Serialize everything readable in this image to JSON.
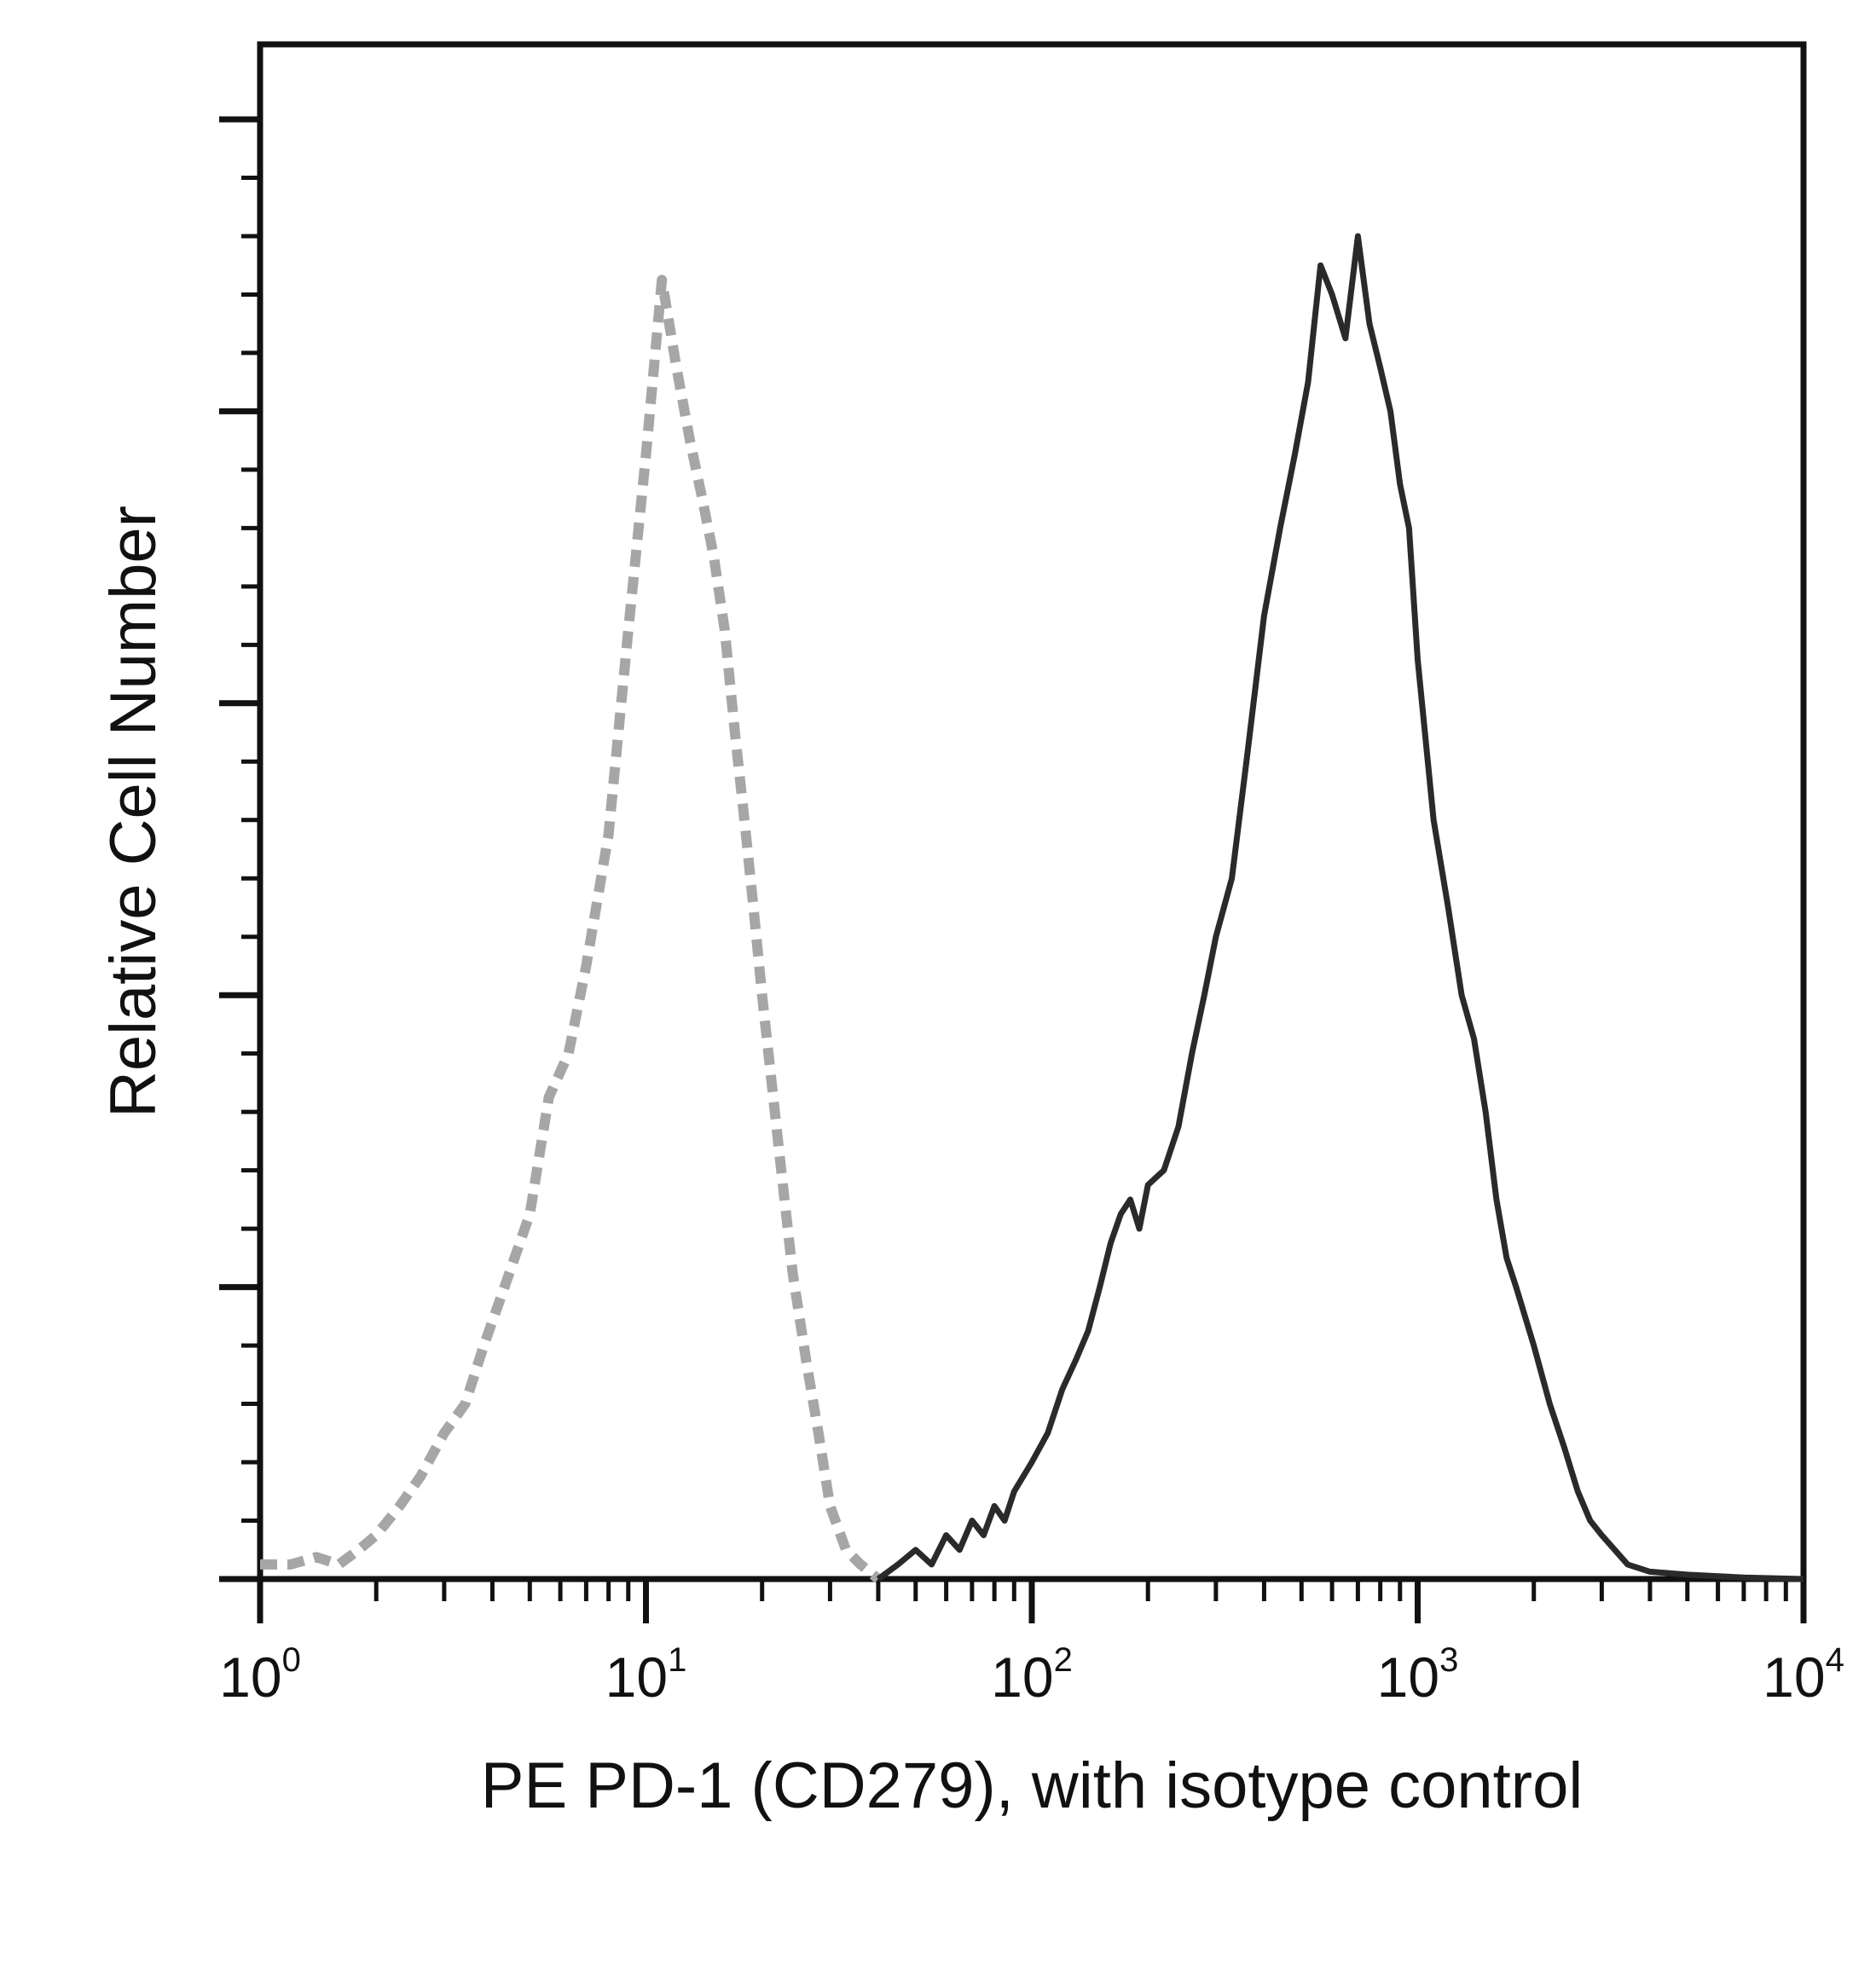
{
  "chart_data": {
    "type": "line",
    "title": "",
    "xlabel": "PE PD-1 (CD279), with isotype control",
    "ylabel": "Relative Cell Number",
    "x_scale": "log",
    "xlim": [
      1,
      10000
    ],
    "ylim": [
      0,
      100
    ],
    "x_ticks": [
      {
        "base": "10",
        "exp": "0"
      },
      {
        "base": "10",
        "exp": "1"
      },
      {
        "base": "10",
        "exp": "2"
      },
      {
        "base": "10",
        "exp": "3"
      },
      {
        "base": "10",
        "exp": "4"
      }
    ],
    "grid": false,
    "legend": "none",
    "series": [
      {
        "style": "dashed",
        "color": "#a6a6a6",
        "x": [
          1,
          1.2,
          1.4,
          1.6,
          1.8,
          2,
          2.3,
          2.6,
          3,
          3.4,
          3.8,
          4.3,
          5,
          5.6,
          6.3,
          7,
          8,
          9,
          10,
          11,
          12,
          13,
          14,
          15,
          16,
          17,
          18,
          19,
          20,
          22,
          24,
          26,
          28,
          30,
          33,
          36,
          40
        ],
        "y": [
          1,
          1,
          1.5,
          1,
          2,
          3,
          5,
          7,
          10,
          12,
          16,
          20,
          25,
          33,
          36,
          42,
          51,
          65,
          77,
          89,
          83,
          78,
          74,
          70,
          65,
          58,
          52,
          46,
          40,
          30,
          21,
          15,
          10,
          5,
          2,
          1,
          0
        ]
      },
      {
        "style": "solid",
        "color": "#2a2a2a",
        "x": [
          40,
          45,
          50,
          55,
          60,
          65,
          70,
          75,
          80,
          85,
          90,
          100,
          110,
          120,
          130,
          140,
          150,
          160,
          170,
          180,
          190,
          200,
          220,
          240,
          260,
          280,
          300,
          330,
          360,
          400,
          440,
          480,
          520,
          560,
          600,
          650,
          700,
          750,
          800,
          850,
          900,
          950,
          1000,
          1100,
          1200,
          1300,
          1400,
          1500,
          1600,
          1700,
          1800,
          2000,
          2200,
          2400,
          2600,
          2800,
          3000,
          3500,
          4000,
          5000,
          7000,
          10000
        ],
        "y": [
          0,
          1,
          2,
          1,
          3,
          2,
          4,
          3,
          5,
          4,
          6,
          8,
          10,
          13,
          15,
          17,
          20,
          23,
          25,
          26,
          24,
          27,
          28,
          31,
          36,
          40,
          44,
          48,
          56,
          66,
          72,
          77,
          82,
          90,
          88,
          85,
          92,
          86,
          83,
          80,
          75,
          72,
          63,
          52,
          46,
          40,
          37,
          32,
          26,
          22,
          20,
          16,
          12,
          9,
          6,
          4,
          3,
          1,
          0.5,
          0.3,
          0.1,
          0
        ]
      }
    ]
  }
}
